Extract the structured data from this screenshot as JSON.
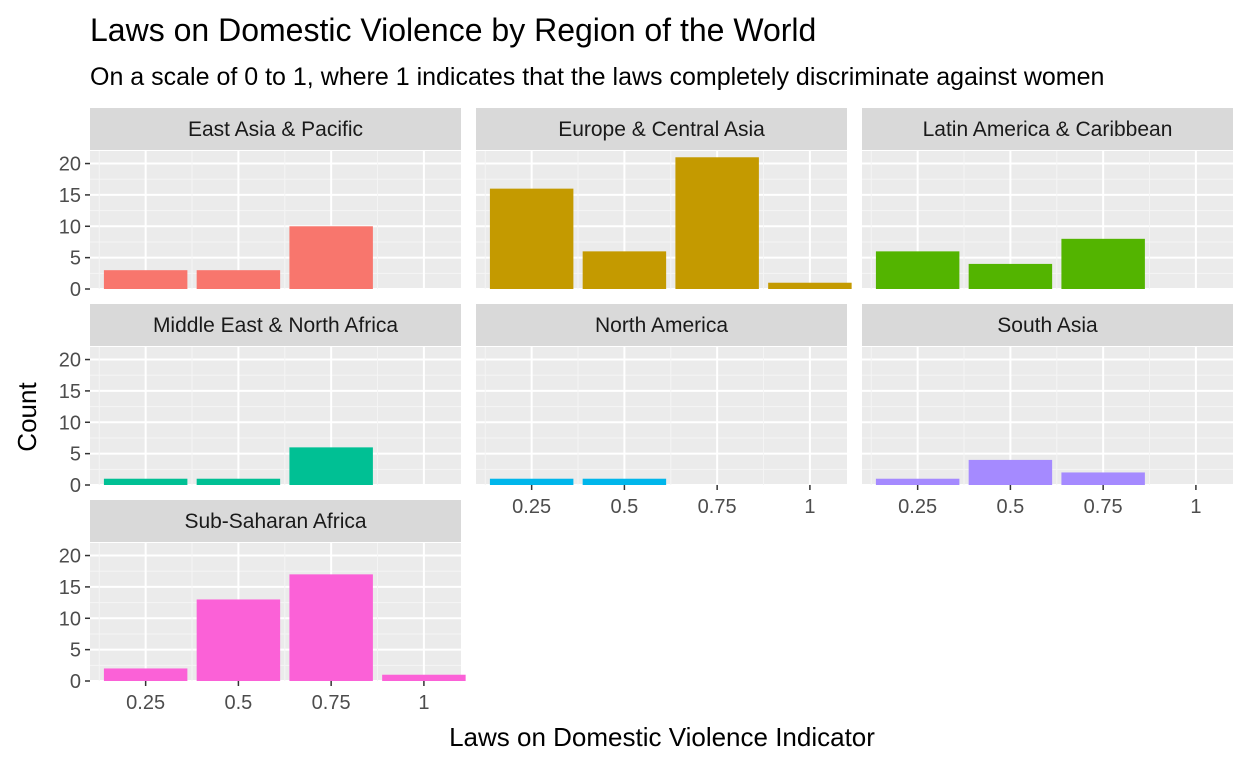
{
  "chart_data": {
    "type": "bar",
    "title": "Laws on Domestic Violence by Region of the World",
    "subtitle": "On a scale of 0 to 1, where 1 indicates that the laws completely discriminate against women",
    "xlabel": "Laws on Domestic Violence Indicator",
    "ylabel": "Count",
    "categories": [
      "0.25",
      "0.5",
      "0.75",
      "1"
    ],
    "x_ticks": [
      "0.25",
      "0.5",
      "0.75",
      "1"
    ],
    "y_ticks": [
      0,
      5,
      10,
      15,
      20
    ],
    "ylim": [
      0,
      22
    ],
    "grid": true,
    "legend": "none",
    "facets": [
      {
        "name": "East Asia & Pacific",
        "color": "#F8766D",
        "values": [
          3,
          3,
          10,
          0
        ]
      },
      {
        "name": "Europe & Central Asia",
        "color": "#C49A00",
        "values": [
          16,
          6,
          21,
          1
        ]
      },
      {
        "name": "Latin America & Caribbean",
        "color": "#53B400",
        "values": [
          6,
          4,
          8,
          0
        ]
      },
      {
        "name": "Middle East & North Africa",
        "color": "#00C094",
        "values": [
          1,
          1,
          6,
          0
        ]
      },
      {
        "name": "North America",
        "color": "#00B6EB",
        "values": [
          1,
          1,
          0,
          0
        ]
      },
      {
        "name": "South Asia",
        "color": "#A58AFF",
        "values": [
          1,
          4,
          2,
          0
        ]
      },
      {
        "name": "Sub-Saharan Africa",
        "color": "#FB61D7",
        "values": [
          2,
          13,
          17,
          1
        ]
      }
    ]
  }
}
